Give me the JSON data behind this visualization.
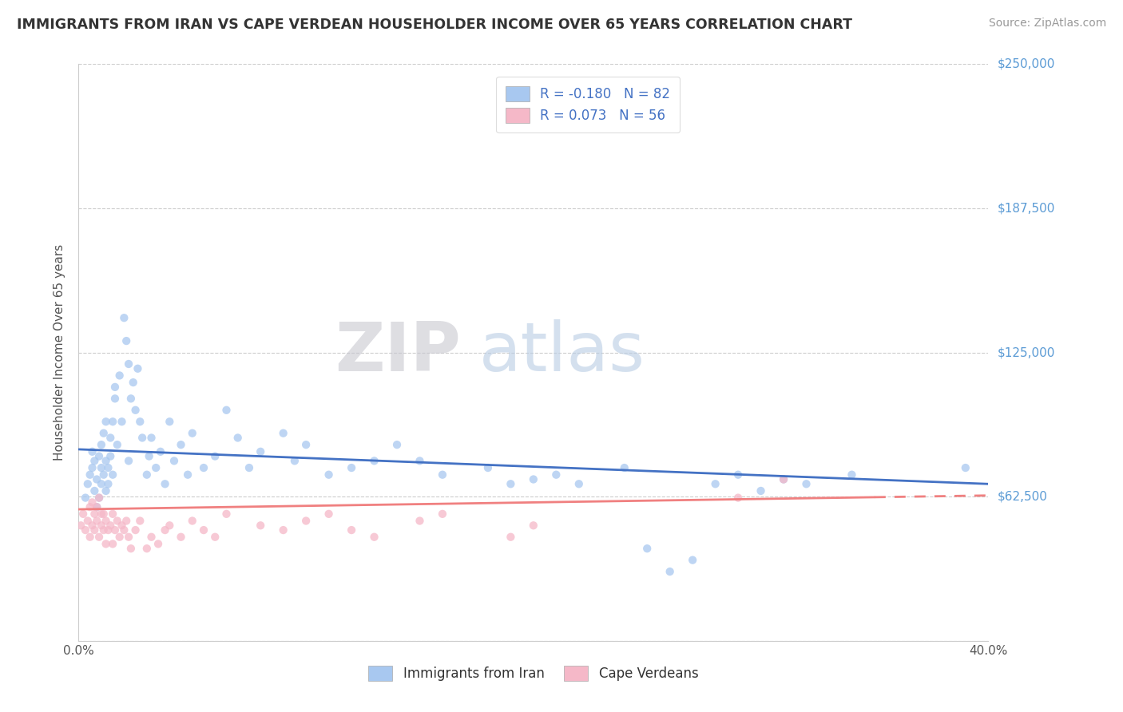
{
  "title": "IMMIGRANTS FROM IRAN VS CAPE VERDEAN HOUSEHOLDER INCOME OVER 65 YEARS CORRELATION CHART",
  "source": "Source: ZipAtlas.com",
  "ylabel": "Householder Income Over 65 years",
  "xlim": [
    0.0,
    0.4
  ],
  "ylim": [
    0,
    250000
  ],
  "yticks": [
    0,
    62500,
    125000,
    187500,
    250000
  ],
  "ytick_labels": [
    "",
    "$62,500",
    "$125,000",
    "$187,500",
    "$250,000"
  ],
  "xticks": [
    0.0,
    0.05,
    0.1,
    0.15,
    0.2,
    0.25,
    0.3,
    0.35,
    0.4
  ],
  "xtick_labels": [
    "0.0%",
    "",
    "",
    "",
    "",
    "",
    "",
    "",
    "40.0%"
  ],
  "series1_color": "#a8c8f0",
  "series2_color": "#f5b8c8",
  "trend1_color": "#4472c4",
  "trend2_color": "#f08080",
  "r1": -0.18,
  "n1": 82,
  "r2": 0.073,
  "n2": 56,
  "label1": "Immigrants from Iran",
  "label2": "Cape Verdeans",
  "watermark_zip": "ZIP",
  "watermark_atlas": "atlas",
  "title_color": "#333333",
  "axis_label_color": "#5b9bd5",
  "background_color": "#ffffff",
  "trend1_y0": 83000,
  "trend1_y1": 68000,
  "trend2_y0": 57000,
  "trend2_y1": 63000,
  "series1_x": [
    0.003,
    0.004,
    0.005,
    0.006,
    0.006,
    0.007,
    0.007,
    0.008,
    0.008,
    0.009,
    0.009,
    0.01,
    0.01,
    0.01,
    0.011,
    0.011,
    0.012,
    0.012,
    0.012,
    0.013,
    0.013,
    0.014,
    0.014,
    0.015,
    0.015,
    0.016,
    0.016,
    0.017,
    0.018,
    0.019,
    0.02,
    0.021,
    0.022,
    0.022,
    0.023,
    0.024,
    0.025,
    0.026,
    0.027,
    0.028,
    0.03,
    0.031,
    0.032,
    0.034,
    0.036,
    0.038,
    0.04,
    0.042,
    0.045,
    0.048,
    0.05,
    0.055,
    0.06,
    0.065,
    0.07,
    0.075,
    0.08,
    0.09,
    0.095,
    0.1,
    0.11,
    0.12,
    0.13,
    0.14,
    0.15,
    0.16,
    0.18,
    0.19,
    0.2,
    0.21,
    0.22,
    0.24,
    0.25,
    0.26,
    0.27,
    0.28,
    0.29,
    0.3,
    0.31,
    0.32,
    0.34,
    0.39
  ],
  "series1_y": [
    62000,
    68000,
    72000,
    75000,
    82000,
    65000,
    78000,
    58000,
    70000,
    62000,
    80000,
    68000,
    75000,
    85000,
    72000,
    90000,
    65000,
    78000,
    95000,
    68000,
    75000,
    80000,
    88000,
    72000,
    95000,
    105000,
    110000,
    85000,
    115000,
    95000,
    140000,
    130000,
    120000,
    78000,
    105000,
    112000,
    100000,
    118000,
    95000,
    88000,
    72000,
    80000,
    88000,
    75000,
    82000,
    68000,
    95000,
    78000,
    85000,
    72000,
    90000,
    75000,
    80000,
    100000,
    88000,
    75000,
    82000,
    90000,
    78000,
    85000,
    72000,
    75000,
    78000,
    85000,
    78000,
    72000,
    75000,
    68000,
    70000,
    72000,
    68000,
    75000,
    40000,
    30000,
    35000,
    68000,
    72000,
    65000,
    70000,
    68000,
    72000,
    75000
  ],
  "series2_x": [
    0.001,
    0.002,
    0.003,
    0.004,
    0.005,
    0.005,
    0.006,
    0.006,
    0.007,
    0.007,
    0.008,
    0.008,
    0.009,
    0.009,
    0.01,
    0.01,
    0.011,
    0.011,
    0.012,
    0.012,
    0.013,
    0.014,
    0.015,
    0.015,
    0.016,
    0.017,
    0.018,
    0.019,
    0.02,
    0.021,
    0.022,
    0.023,
    0.025,
    0.027,
    0.03,
    0.032,
    0.035,
    0.038,
    0.04,
    0.045,
    0.05,
    0.055,
    0.06,
    0.065,
    0.08,
    0.09,
    0.1,
    0.11,
    0.12,
    0.13,
    0.15,
    0.16,
    0.19,
    0.2,
    0.29,
    0.31
  ],
  "series2_y": [
    50000,
    55000,
    48000,
    52000,
    45000,
    58000,
    50000,
    60000,
    55000,
    48000,
    52000,
    58000,
    45000,
    62000,
    50000,
    55000,
    48000,
    55000,
    42000,
    52000,
    48000,
    50000,
    55000,
    42000,
    48000,
    52000,
    45000,
    50000,
    48000,
    52000,
    45000,
    40000,
    48000,
    52000,
    40000,
    45000,
    42000,
    48000,
    50000,
    45000,
    52000,
    48000,
    45000,
    55000,
    50000,
    48000,
    52000,
    55000,
    48000,
    45000,
    52000,
    55000,
    45000,
    50000,
    62000,
    70000
  ]
}
